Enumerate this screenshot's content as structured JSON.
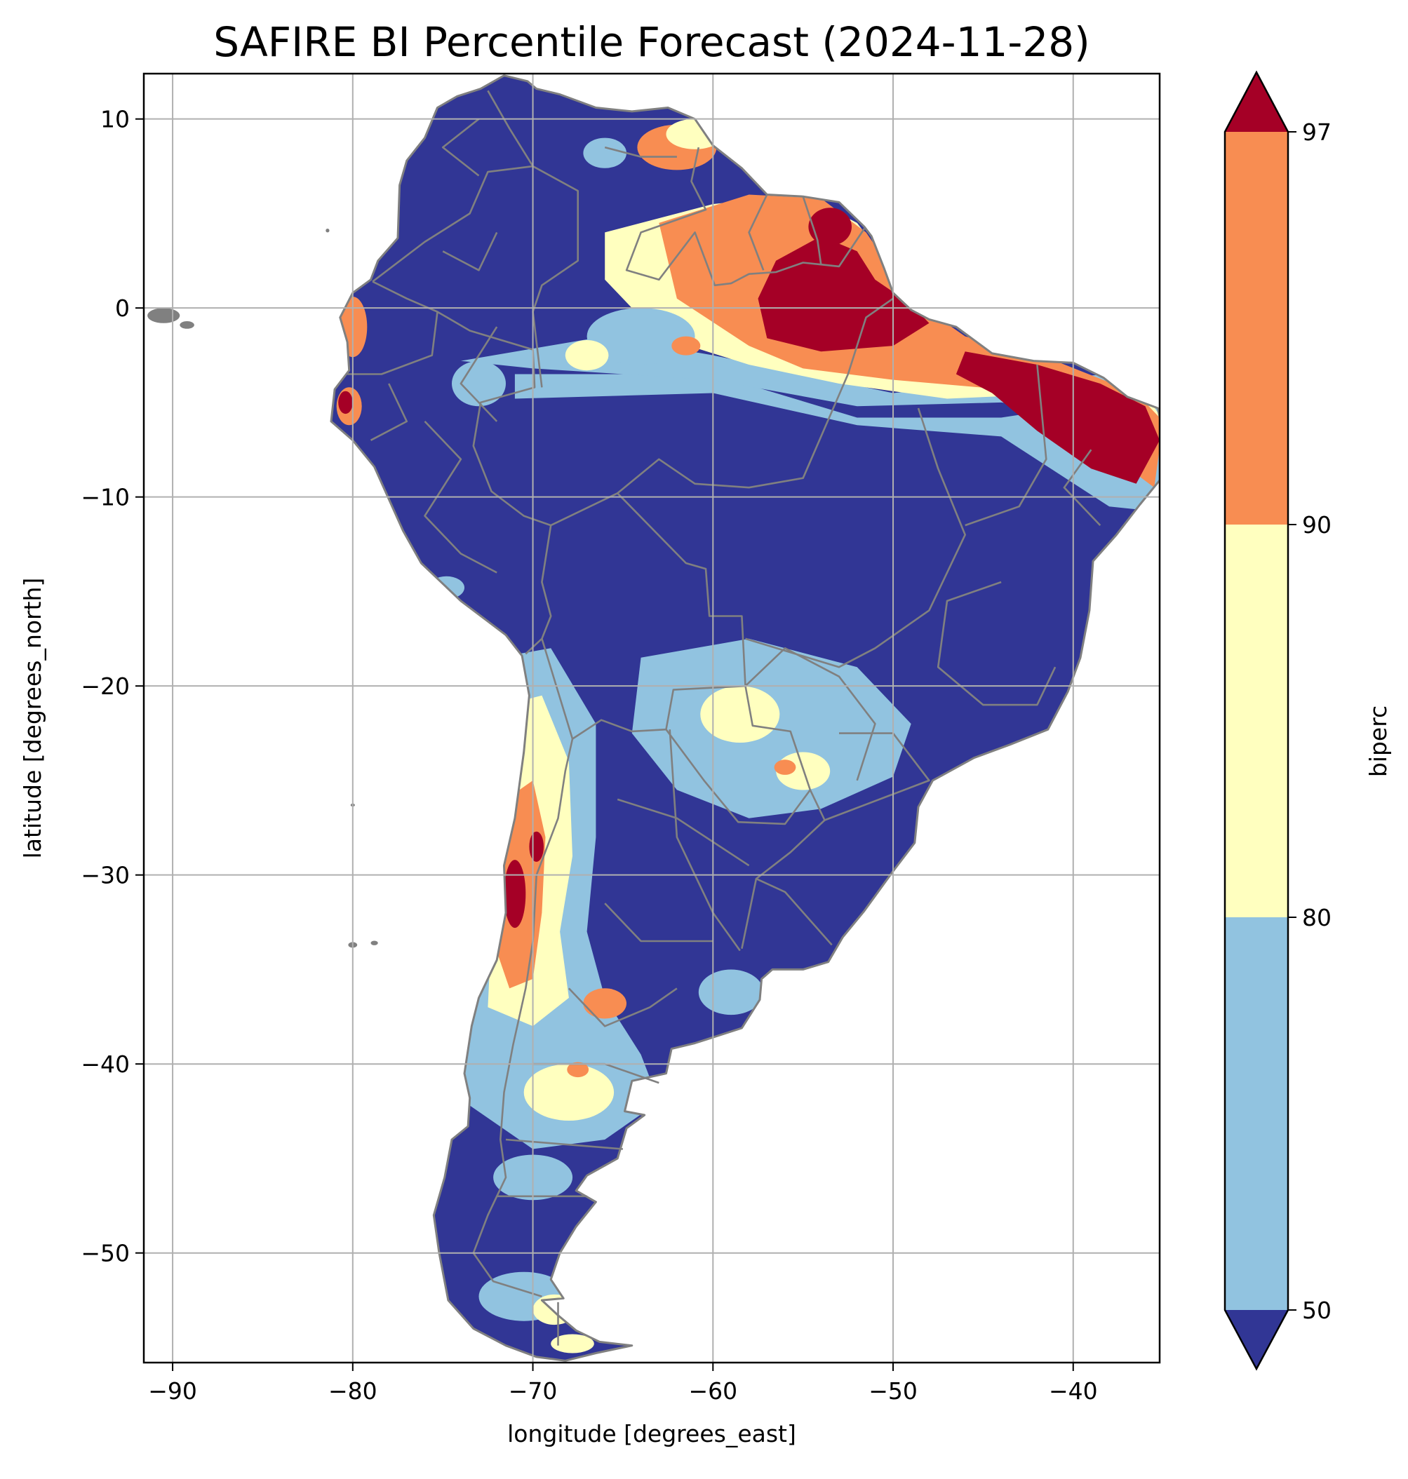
{
  "chart_data": {
    "type": "heatmap",
    "title": "SAFIRE BI Percentile Forecast (2024-11-28)",
    "xlabel": "longitude [degrees_east]",
    "ylabel": "latitude [degrees_north]",
    "xlim": [
      -91.6,
      -35.2
    ],
    "ylim": [
      -55.8,
      12.4
    ],
    "xticks": [
      -90,
      -80,
      -70,
      -60,
      -50,
      -40
    ],
    "yticks": [
      10,
      0,
      -10,
      -20,
      -30,
      -40,
      -50
    ],
    "xtick_labels": [
      "−90",
      "−80",
      "−70",
      "−60",
      "−50",
      "−40"
    ],
    "ytick_labels": [
      "10",
      "0",
      "−10",
      "−20",
      "−30",
      "−40",
      "−50"
    ],
    "grid": true,
    "colorbar": {
      "label": "biperc",
      "levels": [
        50,
        80,
        90,
        97
      ],
      "tick_labels": [
        "50",
        "80",
        "90",
        "97"
      ],
      "extend": "both",
      "colors": {
        "below_50": "#313695",
        "50_80": "#91c3e0",
        "80_90": "#ffffbf",
        "90_97": "#f88d52",
        "above_97": "#a50026"
      }
    },
    "regions": [
      {
        "name": "bulk of continent",
        "category": "below_50"
      },
      {
        "name": "northern Brazil / Amapá–Pará",
        "category": "above_97",
        "lon": [
          -57,
          -48
        ],
        "lat": [
          -3,
          3
        ]
      },
      {
        "name": "northeast Brazil coast",
        "category": "above_97",
        "lon": [
          -46,
          -35
        ],
        "lat": [
          -9,
          -2
        ]
      },
      {
        "name": "central-west Paraguay / Mato Grosso do Sul",
        "category": "50_80",
        "lon": [
          -64,
          -53
        ],
        "lat": [
          -26,
          -18
        ]
      },
      {
        "name": "central Chile / western Argentina",
        "category": "90_97",
        "lon": [
          -72,
          -68
        ],
        "lat": [
          -36,
          -22
        ]
      },
      {
        "name": "Patagonia",
        "category": "50_80",
        "lon": [
          -73,
          -64
        ],
        "lat": [
          -46,
          -35
        ]
      }
    ]
  },
  "colors": {
    "border": "#808080",
    "grid": "#b0b0b0"
  }
}
